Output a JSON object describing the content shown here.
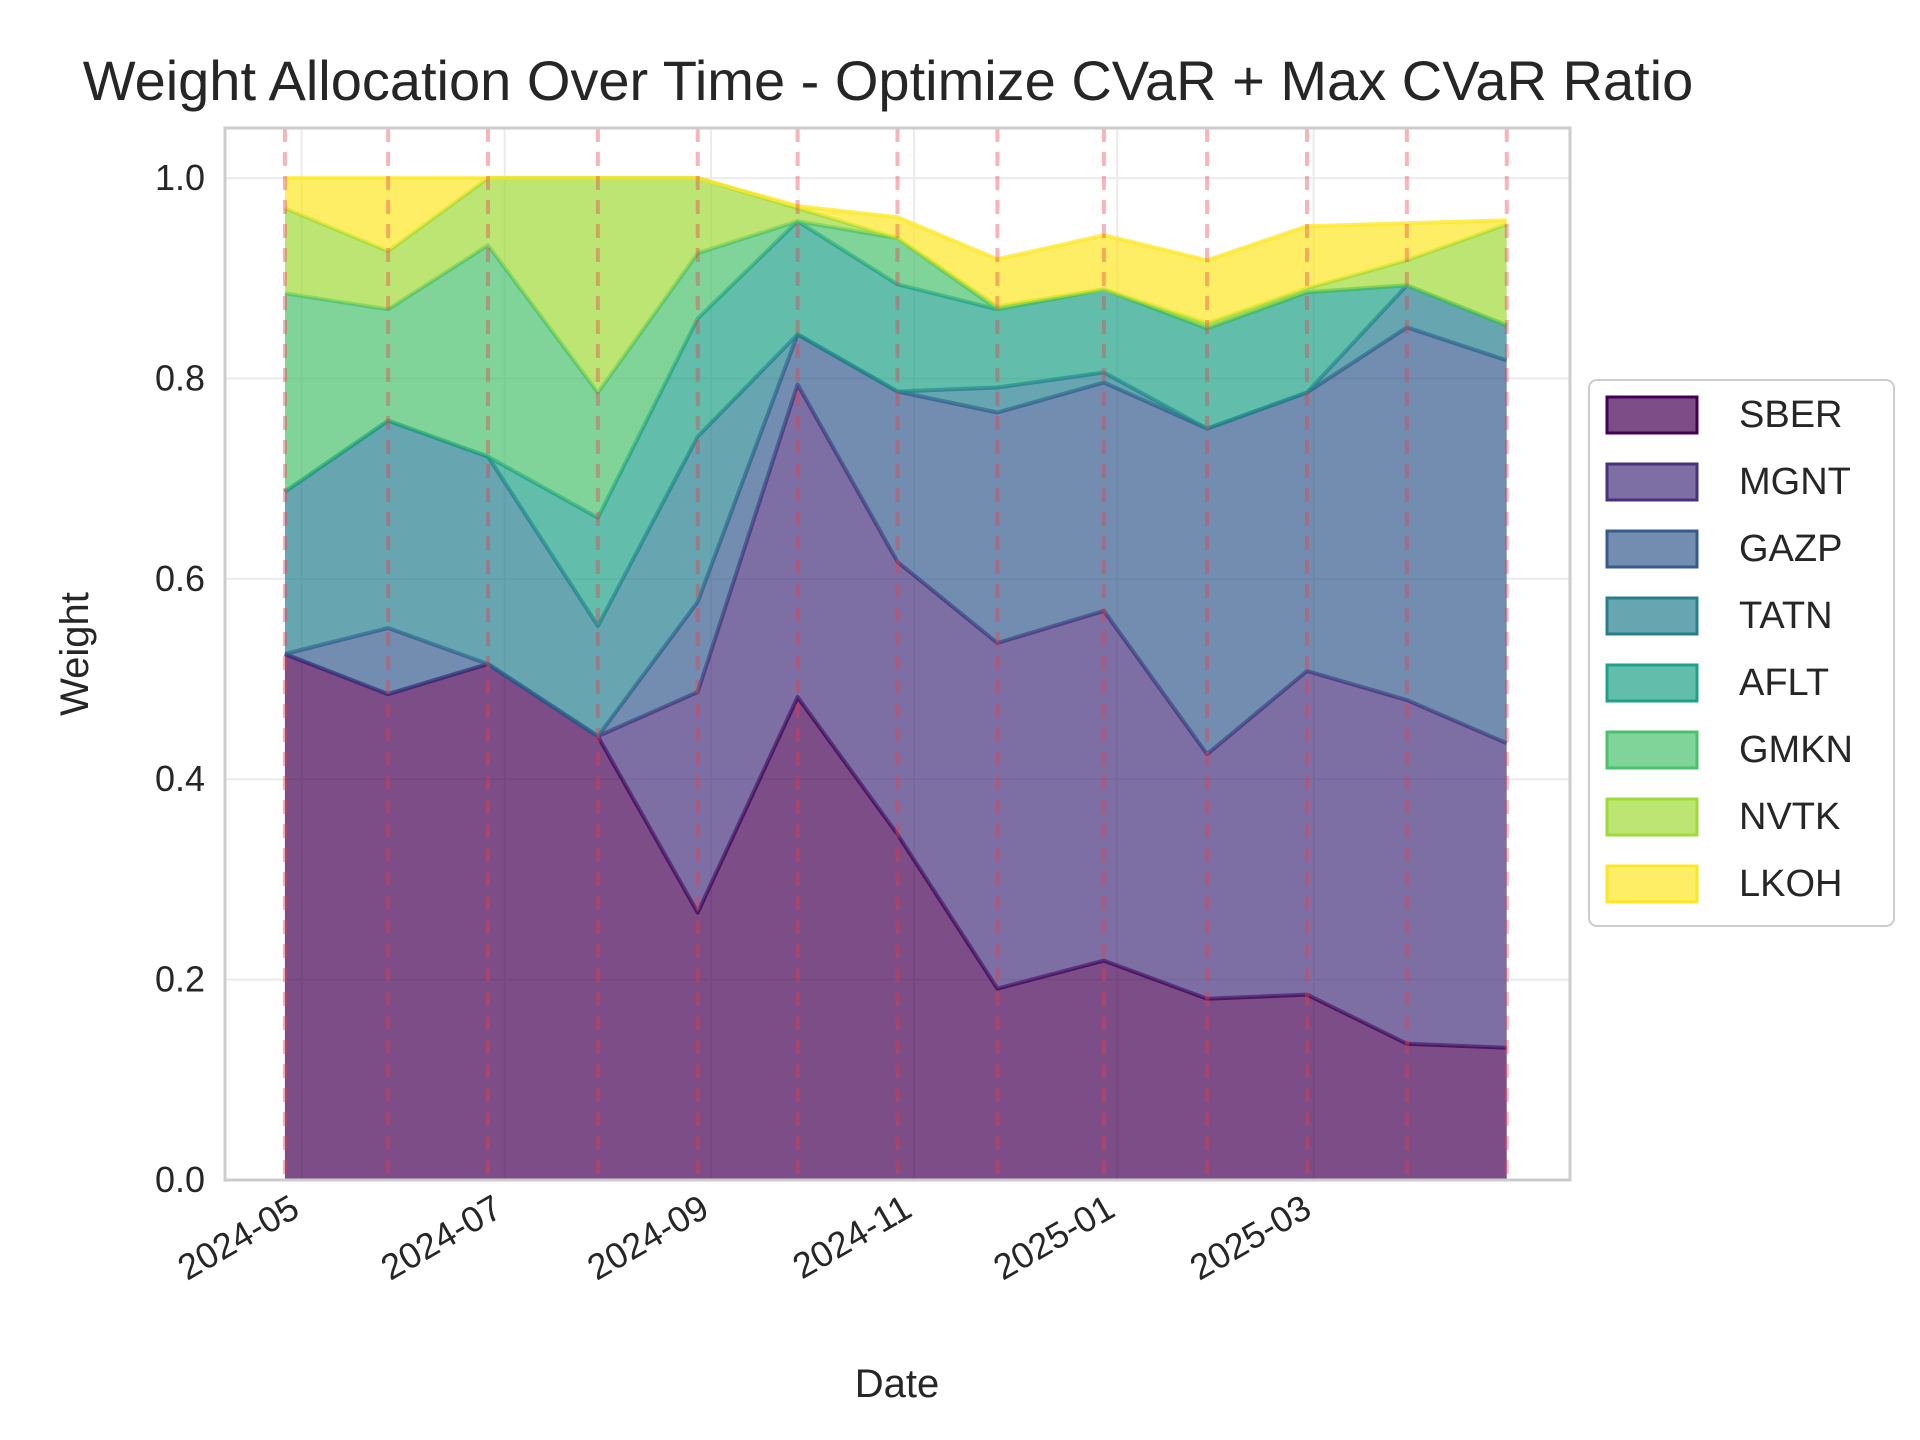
{
  "chart_data": {
    "type": "area",
    "stacked": true,
    "title": "Weight Allocation Over Time - Optimize CVaR + Max CVaR Ratio",
    "xlabel": "Date",
    "ylabel": "Weight",
    "ylim": [
      0,
      1.05
    ],
    "yticks": [
      0.0,
      0.2,
      0.4,
      0.6,
      0.8,
      1.0
    ],
    "xlim": [
      "2024-04-08",
      "2025-05-17"
    ],
    "xticks": [
      "2024-05",
      "2024-07",
      "2024-09",
      "2024-11",
      "2025-01",
      "2025-03"
    ],
    "grid": true,
    "legend_position": "right",
    "x": [
      "2024-04-26",
      "2024-05-27",
      "2024-06-26",
      "2024-07-29",
      "2024-08-28",
      "2024-09-27",
      "2024-10-27",
      "2024-11-26",
      "2024-12-28",
      "2025-01-28",
      "2025-02-27",
      "2025-03-29",
      "2025-04-28"
    ],
    "rebalance_dates": [
      "2024-04-26",
      "2024-05-27",
      "2024-06-26",
      "2024-07-29",
      "2024-08-28",
      "2024-09-27",
      "2024-10-27",
      "2024-11-26",
      "2024-12-28",
      "2025-01-28",
      "2025-02-27",
      "2025-03-29",
      "2025-04-28"
    ],
    "series": [
      {
        "name": "SBER",
        "color": "#440154",
        "values": [
          0.525,
          0.485,
          0.515,
          0.443,
          0.267,
          0.482,
          0.345,
          0.191,
          0.219,
          0.181,
          0.185,
          0.136,
          0.132
        ]
      },
      {
        "name": "MGNT",
        "color": "#46327e",
        "values": [
          0.0,
          0.0,
          0.0,
          0.0,
          0.22,
          0.312,
          0.272,
          0.345,
          0.349,
          0.244,
          0.323,
          0.343,
          0.304
        ]
      },
      {
        "name": "GAZP",
        "color": "#365c8d",
        "values": [
          0.0,
          0.066,
          0.0,
          0.0,
          0.09,
          0.05,
          0.17,
          0.23,
          0.228,
          0.325,
          0.278,
          0.372,
          0.382
        ]
      },
      {
        "name": "TATN",
        "color": "#277f8e",
        "values": [
          0.162,
          0.207,
          0.207,
          0.11,
          0.165,
          0.0,
          0.0,
          0.025,
          0.01,
          0.0,
          0.0,
          0.042,
          0.035
        ]
      },
      {
        "name": "AFLT",
        "color": "#1fa187",
        "values": [
          0.0,
          0.0,
          0.0,
          0.108,
          0.118,
          0.113,
          0.107,
          0.078,
          0.083,
          0.1,
          0.1,
          0.0,
          0.0
        ]
      },
      {
        "name": "GMKN",
        "color": "#4ac16d",
        "values": [
          0.198,
          0.111,
          0.211,
          0.125,
          0.065,
          0.0,
          0.046,
          0.0,
          0.0,
          0.0,
          0.0,
          0.0,
          0.0
        ]
      },
      {
        "name": "NVTK",
        "color": "#a0da39",
        "values": [
          0.085,
          0.058,
          0.067,
          0.214,
          0.075,
          0.013,
          0.0,
          0.003,
          0.0,
          0.005,
          0.004,
          0.025,
          0.101
        ]
      },
      {
        "name": "LKOH",
        "color": "#fde725",
        "values": [
          0.03,
          0.073,
          0.0,
          0.0,
          0.0,
          0.002,
          0.021,
          0.047,
          0.054,
          0.063,
          0.062,
          0.037,
          0.004
        ]
      }
    ]
  }
}
